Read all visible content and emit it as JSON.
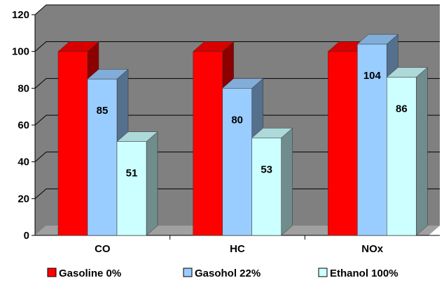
{
  "chart_data": {
    "type": "bar",
    "style": "3d-clustered-column",
    "categories": [
      "CO",
      "HC",
      "NOx"
    ],
    "series": [
      {
        "name": "Gasoline 0%",
        "values": [
          100,
          100,
          100
        ],
        "color": "#ff0000",
        "data_labels": false
      },
      {
        "name": "Gasohol 22%",
        "values": [
          85,
          80,
          104
        ],
        "color": "#99ccff",
        "data_labels": true
      },
      {
        "name": "Ethanol 100%",
        "values": [
          51,
          53,
          86
        ],
        "color": "#ccffff",
        "data_labels": true
      }
    ],
    "ylim": [
      0,
      120
    ],
    "yticks": [
      0,
      20,
      40,
      60,
      80,
      100,
      120
    ],
    "title": "",
    "xlabel": "",
    "ylabel": "",
    "grid": true,
    "legend_position": "bottom",
    "colors": {
      "wall": "#808080",
      "floor": "#a0a0a0",
      "gridline": "#000000"
    }
  }
}
